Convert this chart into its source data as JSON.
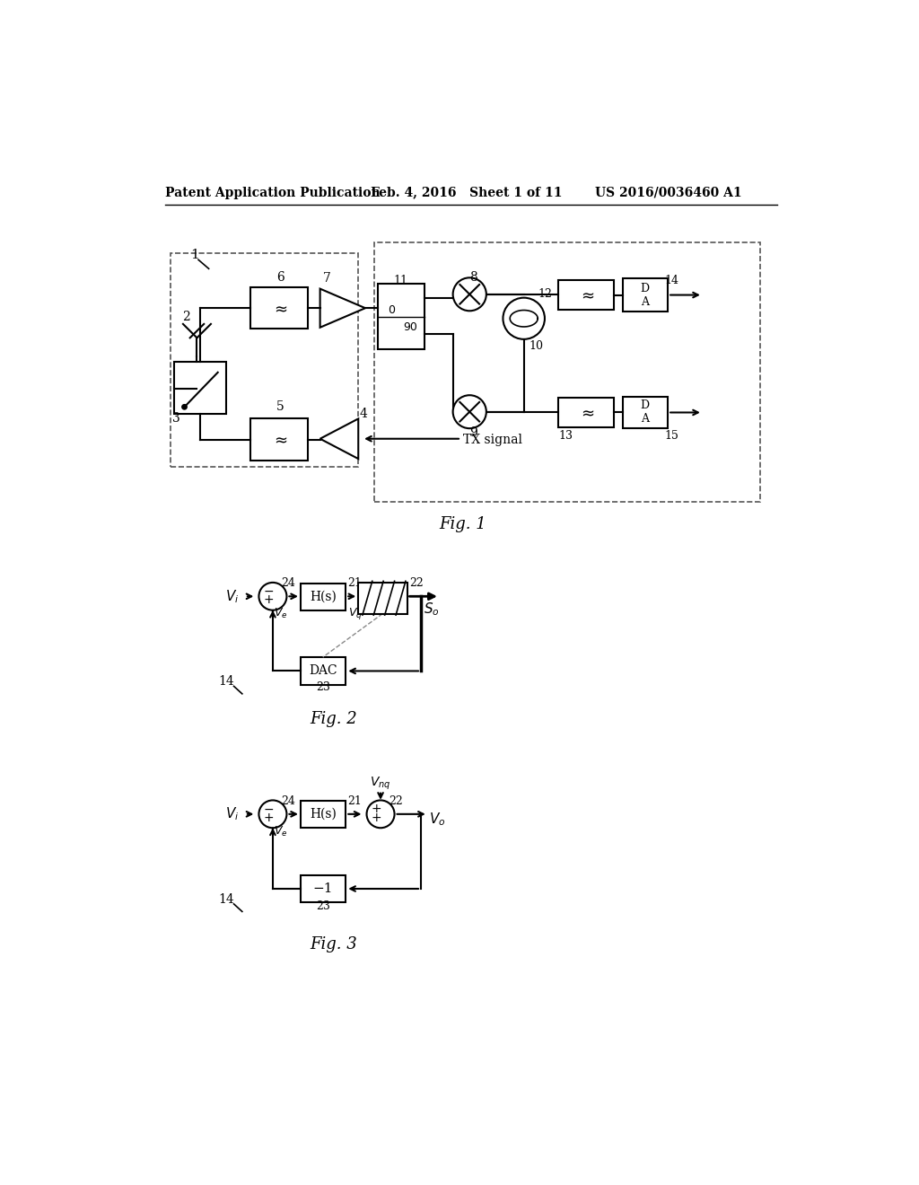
{
  "header_left": "Patent Application Publication",
  "header_mid": "Feb. 4, 2016   Sheet 1 of 11",
  "header_right": "US 2016/0036460 A1",
  "fig1_label": "Fig. 1",
  "fig2_label": "Fig. 2",
  "fig3_label": "Fig. 3",
  "bg_color": "#ffffff",
  "line_color": "#000000"
}
